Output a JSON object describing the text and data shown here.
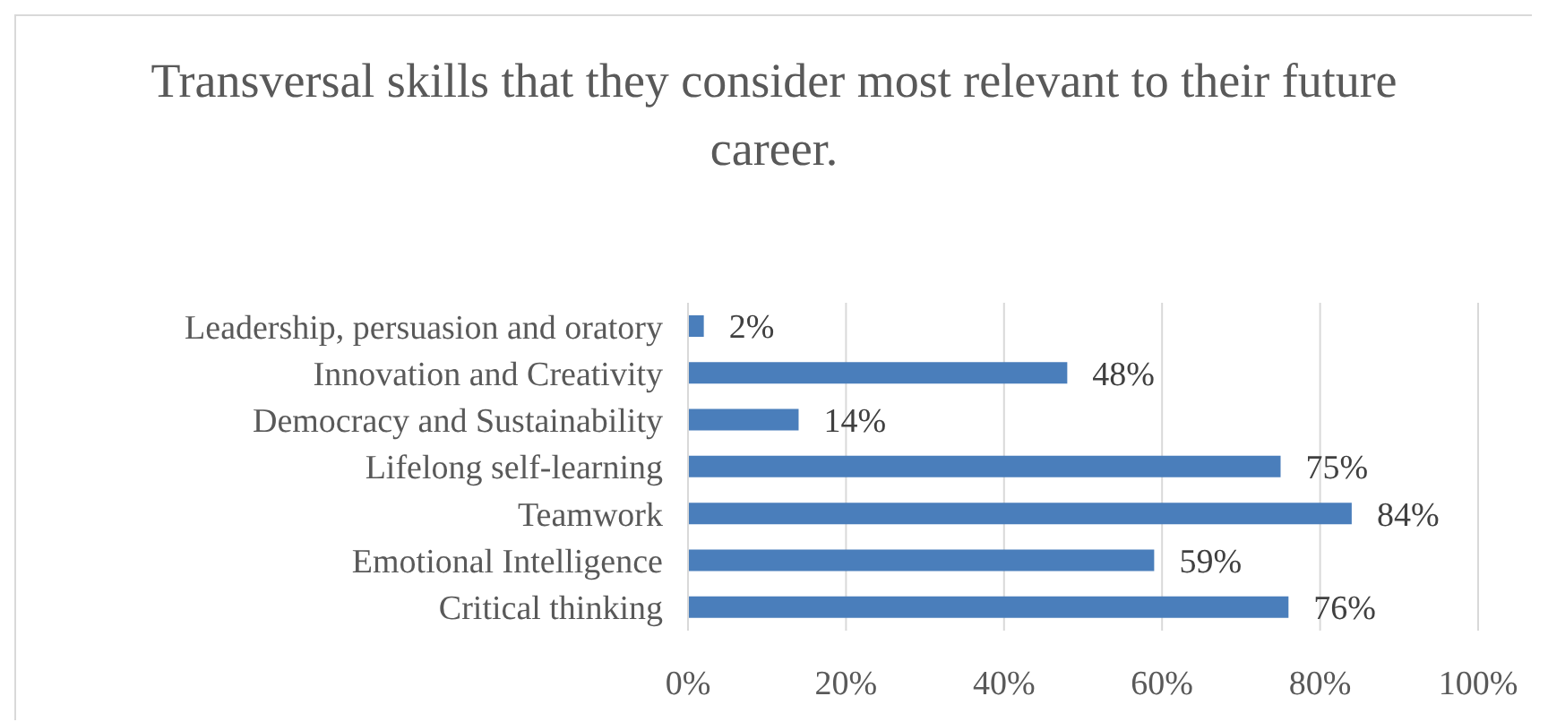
{
  "chart_data": {
    "type": "bar",
    "orientation": "horizontal",
    "title": "Transversal skills that they consider most relevant to their future career.",
    "categories": [
      "Leadership, persuasion and oratory",
      "Innovation and Creativity",
      "Democracy and Sustainability",
      "Lifelong self-learning",
      "Teamwork",
      "Emotional Intelligence",
      "Critical thinking"
    ],
    "values": [
      2,
      48,
      14,
      75,
      84,
      59,
      76
    ],
    "value_labels": [
      "2%",
      "48%",
      "14%",
      "75%",
      "84%",
      "59%",
      "76%"
    ],
    "color": "#4a7ebb",
    "xlim": [
      0,
      100
    ],
    "xticks": [
      {
        "value": 0,
        "label": "0%"
      },
      {
        "value": 20,
        "label": "20%"
      },
      {
        "value": 40,
        "label": "40%"
      },
      {
        "value": 60,
        "label": "60%"
      },
      {
        "value": 80,
        "label": "80%"
      },
      {
        "value": 100,
        "label": "100%"
      }
    ],
    "grid": "x",
    "legend": false
  }
}
